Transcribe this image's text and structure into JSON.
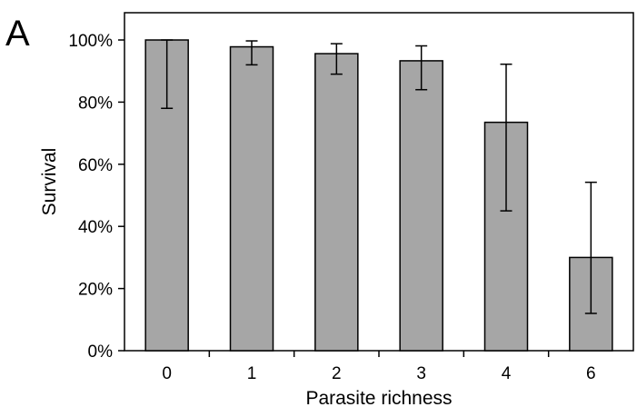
{
  "panel_label": "A",
  "chart_data": {
    "type": "bar",
    "categories": [
      "0",
      "1",
      "2",
      "3",
      "4",
      "6"
    ],
    "values": [
      100,
      97.8,
      95.6,
      93.3,
      73.5,
      30
    ],
    "error_bars": {
      "lower": [
        78,
        92,
        89,
        84,
        45,
        12
      ],
      "upper": [
        100,
        99.7,
        98.8,
        98.1,
        92.2,
        54.2
      ]
    },
    "xlabel": "Parasite richness",
    "ylabel": "Survival",
    "ylim": [
      0,
      100
    ],
    "yticks": [
      0,
      20,
      40,
      60,
      80,
      100
    ],
    "ytick_labels": [
      "0%",
      "20%",
      "40%",
      "60%",
      "80%",
      "100%"
    ],
    "bar_color": "#a6a6a6",
    "grid": false,
    "legend": "none"
  }
}
